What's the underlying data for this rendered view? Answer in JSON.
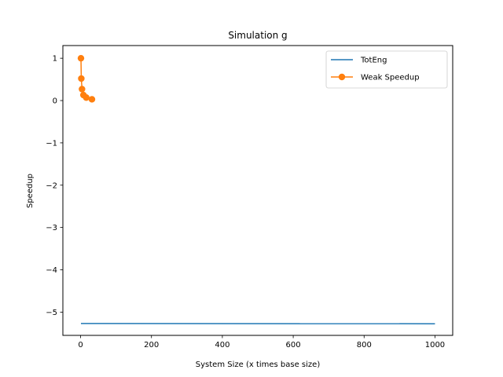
{
  "chart_data": {
    "type": "line",
    "title": "Simulation g",
    "xlabel": "System Size (x times base size)",
    "ylabel": "Speedup",
    "xlim": [
      -50,
      1050
    ],
    "ylim": [
      -5.55,
      1.3
    ],
    "x_ticks": [
      0,
      200,
      400,
      600,
      800,
      1000
    ],
    "x_tick_labels": [
      "0",
      "200",
      "400",
      "600",
      "800",
      "1000"
    ],
    "y_ticks": [
      1,
      0,
      -1,
      -2,
      -3,
      -4,
      -5
    ],
    "y_tick_labels": [
      "1",
      "0",
      "−1",
      "−2",
      "−3",
      "−4",
      "−5"
    ],
    "grid": false,
    "legend_position": "top-right",
    "series": [
      {
        "name": "TotEng",
        "color": "#1f77b4",
        "marker": "none",
        "x": [
          1,
          1000
        ],
        "y": [
          -5.27,
          -5.275
        ]
      },
      {
        "name": "Weak Speedup",
        "color": "#ff7f0e",
        "marker": "circle",
        "x": [
          1,
          2,
          4,
          8,
          16,
          32
        ],
        "y": [
          1.0,
          0.52,
          0.27,
          0.13,
          0.07,
          0.03
        ]
      }
    ]
  }
}
